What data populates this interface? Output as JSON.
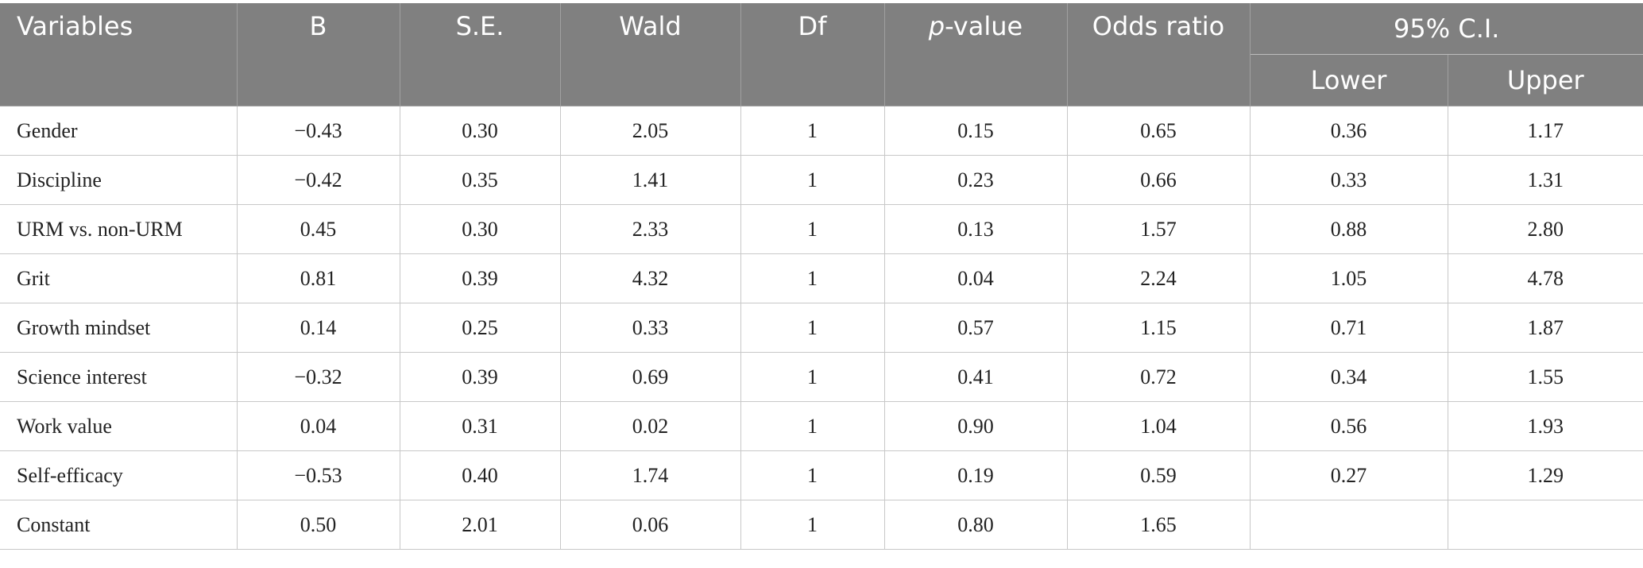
{
  "table": {
    "headers": {
      "variables": "Variables",
      "b": "B",
      "se": "S.E.",
      "wald": "Wald",
      "df": "Df",
      "p_italic": "p",
      "p_rest": "-value",
      "odds_ratio": "Odds ratio",
      "ci": "95% C.I.",
      "lower": "Lower",
      "upper": "Upper"
    },
    "rows": [
      [
        "Gender",
        "−0.43",
        "0.30",
        "2.05",
        "1",
        "0.15",
        "0.65",
        "0.36",
        "1.17"
      ],
      [
        "Discipline",
        "−0.42",
        "0.35",
        "1.41",
        "1",
        "0.23",
        "0.66",
        "0.33",
        "1.31"
      ],
      [
        "URM vs. non-URM",
        "0.45",
        "0.30",
        "2.33",
        "1",
        "0.13",
        "1.57",
        "0.88",
        "2.80"
      ],
      [
        "Grit",
        "0.81",
        "0.39",
        "4.32",
        "1",
        "0.04",
        "2.24",
        "1.05",
        "4.78"
      ],
      [
        "Growth mindset",
        "0.14",
        "0.25",
        "0.33",
        "1",
        "0.57",
        "1.15",
        "0.71",
        "1.87"
      ],
      [
        "Science interest",
        "−0.32",
        "0.39",
        "0.69",
        "1",
        "0.41",
        "0.72",
        "0.34",
        "1.55"
      ],
      [
        "Work value",
        "0.04",
        "0.31",
        "0.02",
        "1",
        "0.90",
        "1.04",
        "0.56",
        "1.93"
      ],
      [
        "Self-efficacy",
        "−0.53",
        "0.40",
        "1.74",
        "1",
        "0.19",
        "0.59",
        "0.27",
        "1.29"
      ],
      [
        "Constant",
        "0.50",
        "2.01",
        "0.06",
        "1",
        "0.80",
        "1.65",
        "",
        ""
      ]
    ]
  },
  "colors": {
    "header_bg": "#808080",
    "header_text": "#ffffff",
    "grid": "#c8c8c8"
  }
}
